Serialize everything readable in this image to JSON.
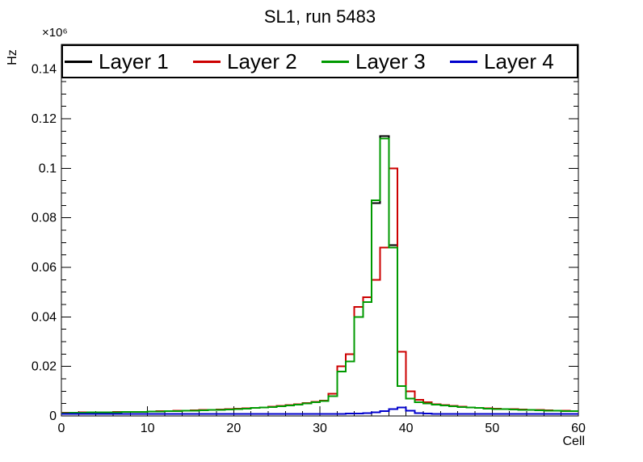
{
  "chart_data": {
    "type": "line",
    "style": "step-histogram",
    "title": "SL1, run 5483",
    "xlabel": "Cell",
    "ylabel": "Hz",
    "y_multiplier": "×10⁶",
    "xlim": [
      0,
      60
    ],
    "ylim": [
      0,
      0.15
    ],
    "x_major_ticks": [
      0,
      10,
      20,
      30,
      40,
      50,
      60
    ],
    "y_major_ticks": [
      0,
      0.02,
      0.04,
      0.06,
      0.08,
      0.1,
      0.12,
      0.14
    ],
    "x_minor_step": 2,
    "y_minor_step": 0.005,
    "bin_width": 1,
    "grid": false,
    "legend_position": "top",
    "frame_color": "#000000",
    "background_color": "#ffffff",
    "series": [
      {
        "name": "Layer 1",
        "color": "#000000",
        "values": [
          0.0012,
          0.0013,
          0.0013,
          0.0014,
          0.0014,
          0.0015,
          0.0015,
          0.0016,
          0.0016,
          0.0017,
          0.0018,
          0.0018,
          0.0019,
          0.002,
          0.0021,
          0.0022,
          0.0023,
          0.0024,
          0.0025,
          0.0026,
          0.0028,
          0.003,
          0.0032,
          0.0034,
          0.0036,
          0.0039,
          0.0042,
          0.0046,
          0.005,
          0.0055,
          0.006,
          0.008,
          0.018,
          0.022,
          0.04,
          0.046,
          0.086,
          0.113,
          0.069,
          0.012,
          0.007,
          0.0055,
          0.005,
          0.0046,
          0.0042,
          0.0039,
          0.0036,
          0.0034,
          0.0032,
          0.003,
          0.0028,
          0.0027,
          0.0026,
          0.0025,
          0.0024,
          0.0023,
          0.0022,
          0.0021,
          0.002,
          0.0019
        ]
      },
      {
        "name": "Layer 2",
        "color": "#cc0000",
        "values": [
          0.0013,
          0.0013,
          0.0014,
          0.0014,
          0.0015,
          0.0015,
          0.0016,
          0.0016,
          0.0017,
          0.0017,
          0.0018,
          0.0019,
          0.002,
          0.0021,
          0.0022,
          0.0023,
          0.0024,
          0.0025,
          0.0026,
          0.0027,
          0.0029,
          0.0031,
          0.0033,
          0.0035,
          0.0038,
          0.0041,
          0.0044,
          0.0048,
          0.0052,
          0.0057,
          0.0062,
          0.009,
          0.02,
          0.025,
          0.044,
          0.048,
          0.055,
          0.068,
          0.1,
          0.026,
          0.01,
          0.0065,
          0.0055,
          0.0048,
          0.0044,
          0.004,
          0.0037,
          0.0035,
          0.0033,
          0.0031,
          0.0029,
          0.0028,
          0.0027,
          0.0026,
          0.0025,
          0.0024,
          0.0023,
          0.0022,
          0.0021,
          0.002
        ]
      },
      {
        "name": "Layer 3",
        "color": "#009900",
        "values": [
          0.0012,
          0.0013,
          0.0013,
          0.0014,
          0.0014,
          0.0015,
          0.0015,
          0.0016,
          0.0016,
          0.0017,
          0.0018,
          0.0018,
          0.0019,
          0.002,
          0.0021,
          0.0022,
          0.0023,
          0.0024,
          0.0025,
          0.0026,
          0.0028,
          0.003,
          0.0032,
          0.0034,
          0.0036,
          0.0039,
          0.0042,
          0.0046,
          0.005,
          0.0055,
          0.006,
          0.008,
          0.018,
          0.022,
          0.04,
          0.046,
          0.087,
          0.112,
          0.068,
          0.012,
          0.007,
          0.0055,
          0.005,
          0.0046,
          0.0042,
          0.0039,
          0.0036,
          0.0034,
          0.0032,
          0.003,
          0.0028,
          0.0027,
          0.0026,
          0.0025,
          0.0024,
          0.0023,
          0.0022,
          0.0021,
          0.002,
          0.0019
        ]
      },
      {
        "name": "Layer 4",
        "color": "#0000cc",
        "values": [
          0.0008,
          0.0008,
          0.0008,
          0.0008,
          0.0008,
          0.0008,
          0.0008,
          0.0008,
          0.0008,
          0.0008,
          0.0008,
          0.0008,
          0.0008,
          0.0008,
          0.0008,
          0.0008,
          0.0008,
          0.0008,
          0.0008,
          0.0008,
          0.0008,
          0.0008,
          0.0008,
          0.0008,
          0.0008,
          0.0008,
          0.0008,
          0.0008,
          0.0008,
          0.0008,
          0.0008,
          0.0008,
          0.0008,
          0.0009,
          0.001,
          0.0012,
          0.0015,
          0.002,
          0.0028,
          0.0035,
          0.0022,
          0.0012,
          0.001,
          0.0008,
          0.0008,
          0.0008,
          0.0008,
          0.0008,
          0.0008,
          0.0008,
          0.0008,
          0.0008,
          0.0008,
          0.0008,
          0.0008,
          0.0008,
          0.0008,
          0.0008,
          0.0008,
          0.0008
        ]
      }
    ]
  }
}
